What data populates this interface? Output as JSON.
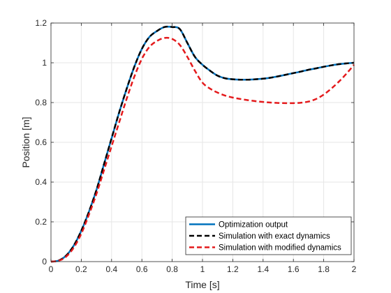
{
  "chart_data": {
    "type": "line",
    "title": "",
    "xlabel": "Time [s]",
    "ylabel": "Position [m]",
    "xlim": [
      0,
      2
    ],
    "ylim": [
      0,
      1.2
    ],
    "xticks": [
      0,
      0.2,
      0.4,
      0.6,
      0.8,
      1,
      1.2,
      1.4,
      1.6,
      1.8,
      2
    ],
    "yticks": [
      0,
      0.2,
      0.4,
      0.6,
      0.8,
      1,
      1.2
    ],
    "xtick_labels": [
      "0",
      "0.2",
      "0.4",
      "0.6",
      "0.8",
      "1",
      "1.2",
      "1.4",
      "1.6",
      "1.8",
      "2"
    ],
    "ytick_labels": [
      "0",
      "0.2",
      "0.4",
      "0.6",
      "0.8",
      "1",
      "1.2"
    ],
    "grid": true,
    "legend_position": "bottom-right",
    "x": [
      0,
      0.05,
      0.1,
      0.15,
      0.2,
      0.25,
      0.3,
      0.35,
      0.4,
      0.45,
      0.5,
      0.55,
      0.6,
      0.65,
      0.7,
      0.75,
      0.8,
      0.85,
      0.9,
      0.95,
      1.0,
      1.05,
      1.1,
      1.15,
      1.2,
      1.25,
      1.3,
      1.35,
      1.4,
      1.45,
      1.5,
      1.55,
      1.6,
      1.65,
      1.7,
      1.75,
      1.8,
      1.85,
      1.9,
      1.95,
      2.0
    ],
    "series": [
      {
        "name": "Optimization output",
        "color": "#0072BD",
        "style": "solid",
        "values": [
          0,
          0.005,
          0.03,
          0.08,
          0.155,
          0.25,
          0.36,
          0.49,
          0.62,
          0.75,
          0.87,
          0.98,
          1.07,
          1.13,
          1.16,
          1.18,
          1.18,
          1.17,
          1.1,
          1.03,
          0.99,
          0.96,
          0.935,
          0.922,
          0.917,
          0.915,
          0.915,
          0.917,
          0.92,
          0.925,
          0.932,
          0.94,
          0.948,
          0.956,
          0.965,
          0.972,
          0.98,
          0.987,
          0.993,
          0.997,
          1.0
        ]
      },
      {
        "name": "Simulation with exact dynamics",
        "color": "#000000",
        "style": "dashed",
        "values": [
          0,
          0.005,
          0.03,
          0.08,
          0.155,
          0.25,
          0.36,
          0.49,
          0.62,
          0.75,
          0.87,
          0.98,
          1.07,
          1.13,
          1.16,
          1.18,
          1.18,
          1.17,
          1.1,
          1.03,
          0.99,
          0.96,
          0.935,
          0.922,
          0.917,
          0.915,
          0.915,
          0.917,
          0.92,
          0.925,
          0.932,
          0.94,
          0.948,
          0.956,
          0.965,
          0.972,
          0.98,
          0.987,
          0.993,
          0.997,
          1.0
        ]
      },
      {
        "name": "Simulation with modified dynamics",
        "color": "#E41A1C",
        "style": "dashed",
        "values": [
          0,
          0.004,
          0.025,
          0.07,
          0.14,
          0.235,
          0.34,
          0.46,
          0.58,
          0.7,
          0.82,
          0.93,
          1.02,
          1.08,
          1.11,
          1.125,
          1.12,
          1.09,
          1.03,
          0.96,
          0.9,
          0.87,
          0.85,
          0.835,
          0.825,
          0.818,
          0.812,
          0.807,
          0.803,
          0.8,
          0.798,
          0.797,
          0.797,
          0.799,
          0.805,
          0.818,
          0.84,
          0.87,
          0.905,
          0.945,
          0.99
        ]
      }
    ]
  }
}
